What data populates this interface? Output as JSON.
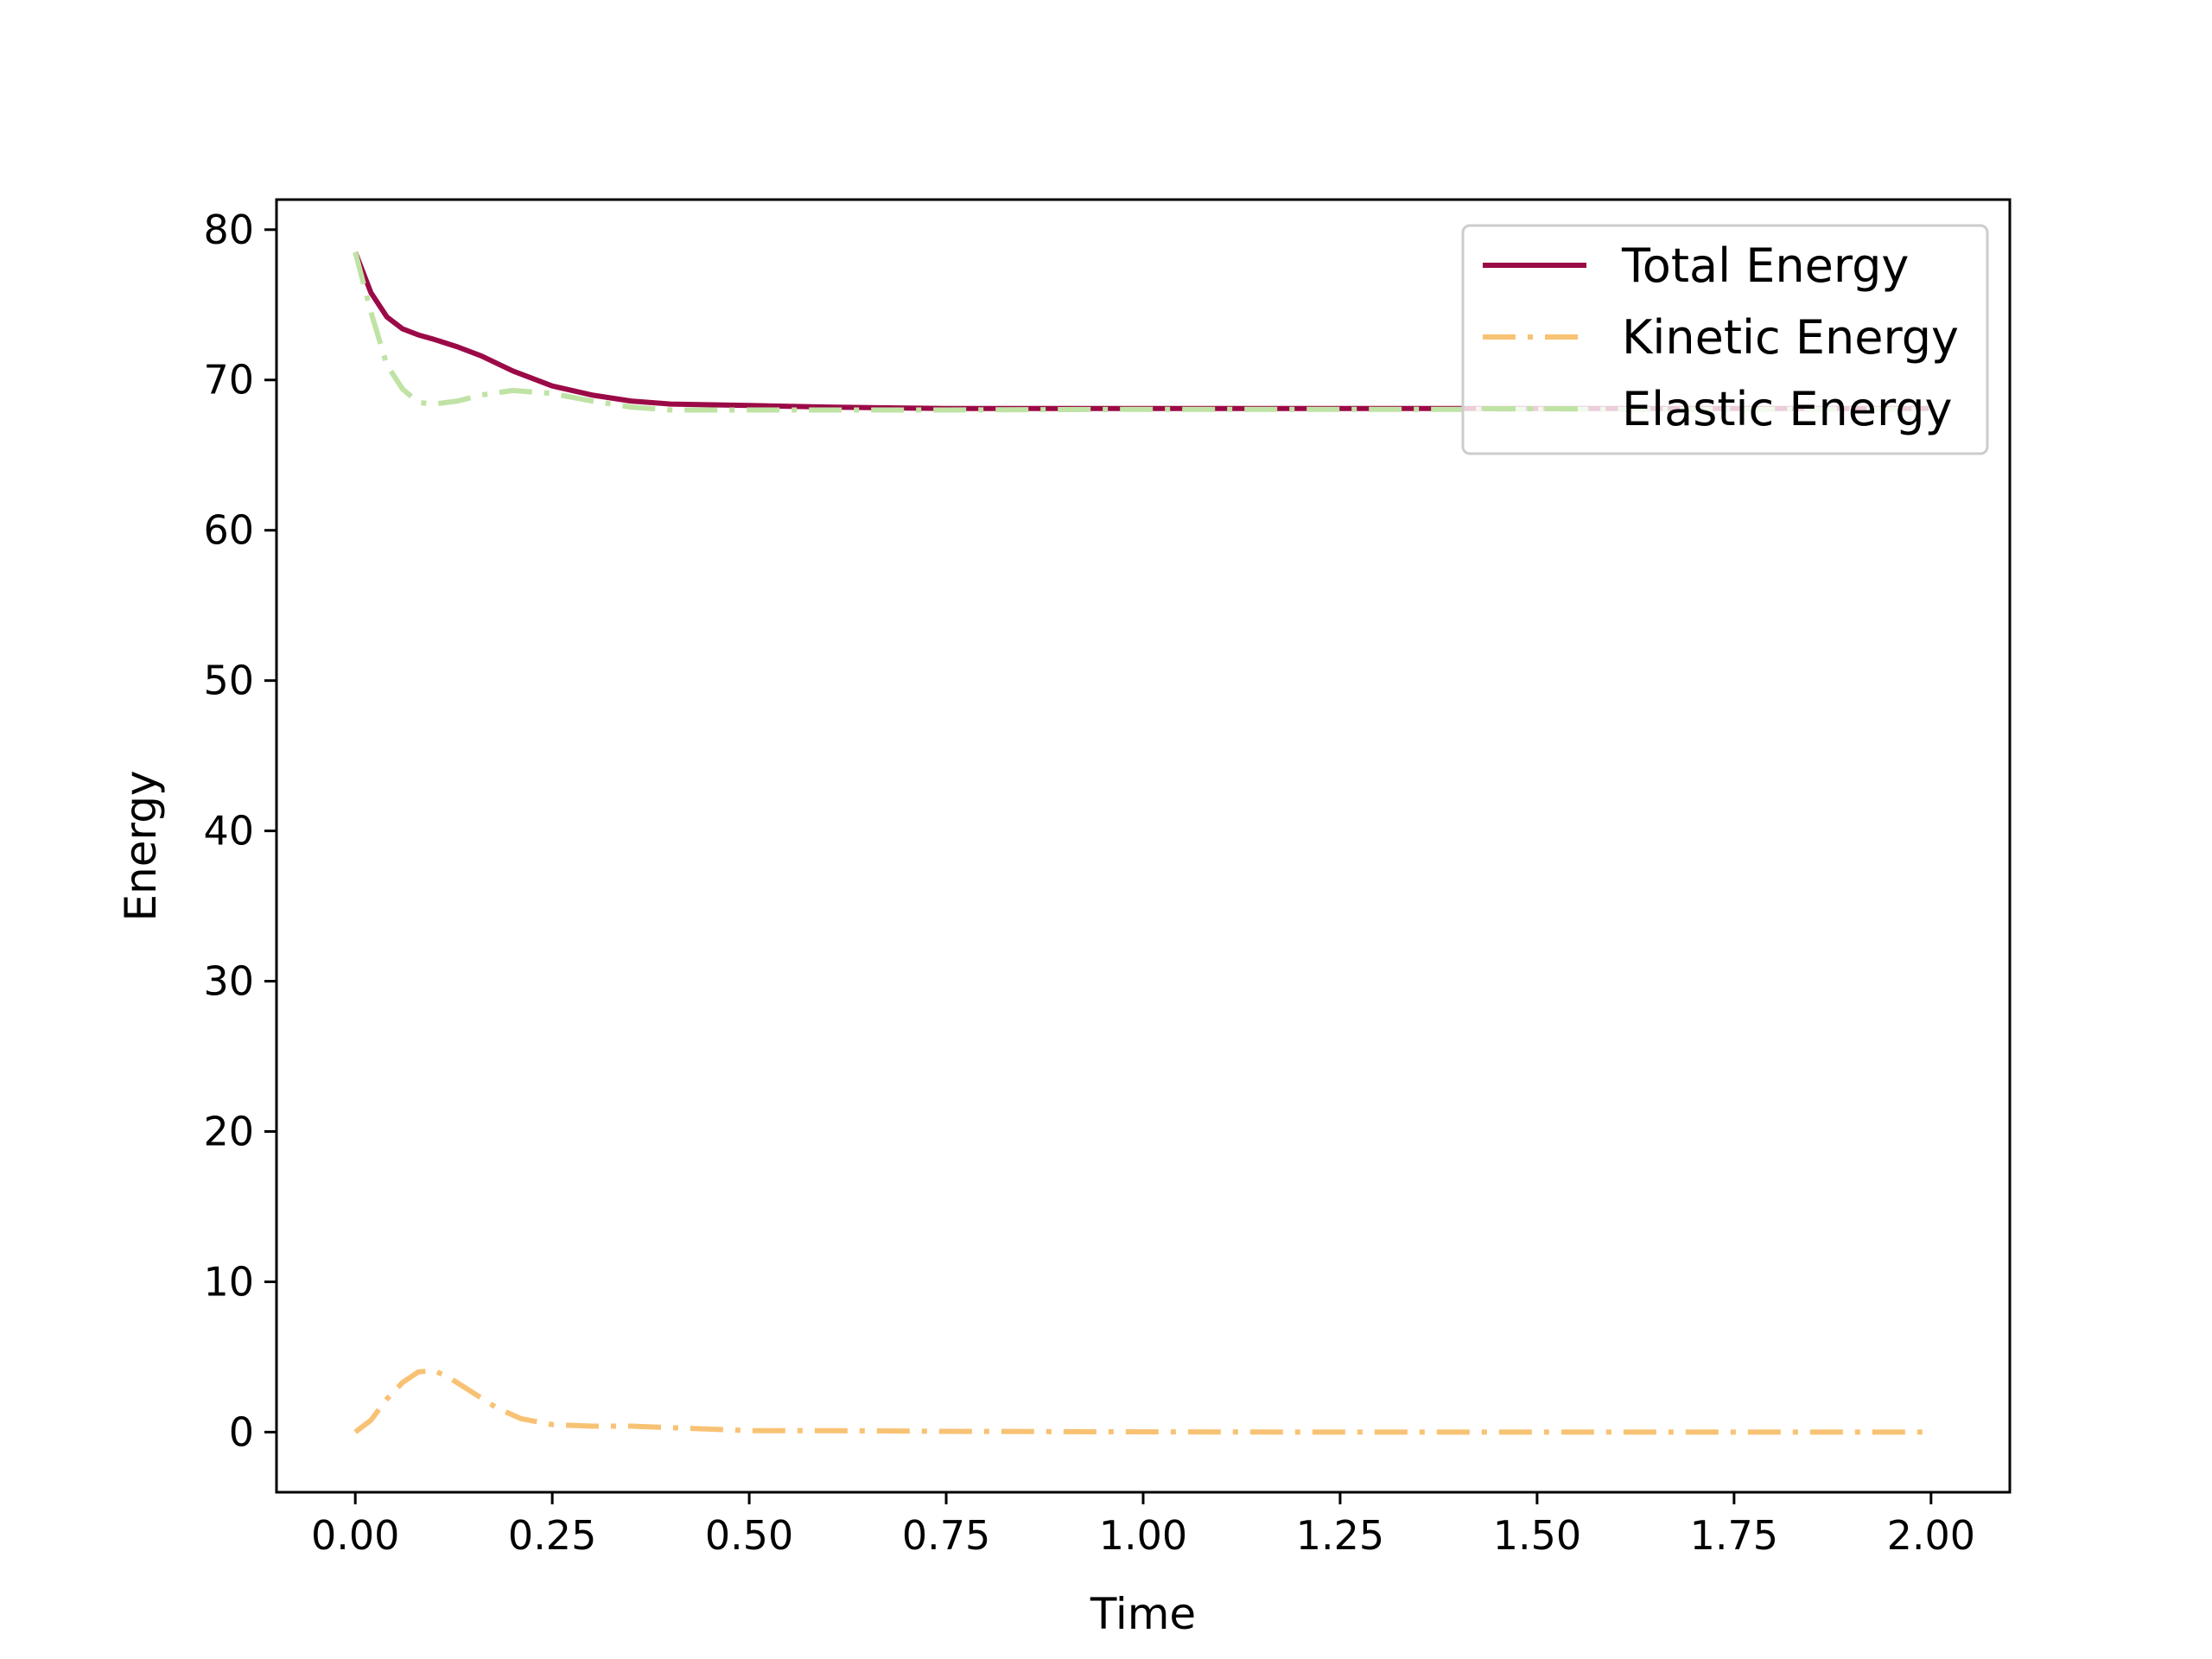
{
  "chart_data": {
    "type": "line",
    "xlabel": "Time",
    "ylabel": "Energy",
    "xlim": [
      -0.1,
      2.1
    ],
    "ylim": [
      -4,
      82
    ],
    "xticks": [
      0.0,
      0.25,
      0.5,
      0.75,
      1.0,
      1.25,
      1.5,
      1.75,
      2.0
    ],
    "xtick_labels": [
      "0.00",
      "0.25",
      "0.50",
      "0.75",
      "1.00",
      "1.25",
      "1.50",
      "1.75",
      "2.00"
    ],
    "yticks": [
      0,
      10,
      20,
      30,
      40,
      50,
      60,
      70,
      80
    ],
    "ytick_labels": [
      "0",
      "10",
      "20",
      "30",
      "40",
      "50",
      "60",
      "70",
      "80"
    ],
    "legend_position": "top-right",
    "series": [
      {
        "name": "Total Energy",
        "color": "#9b0a47",
        "style": "solid",
        "x": [
          0,
          0.02,
          0.04,
          0.06,
          0.08,
          0.1,
          0.13,
          0.16,
          0.2,
          0.25,
          0.3,
          0.35,
          0.4,
          0.5,
          0.6,
          0.75,
          1.0,
          1.25,
          1.5,
          1.75,
          2.0
        ],
        "y": [
          78.5,
          75.8,
          74.2,
          73.4,
          73.0,
          72.7,
          72.2,
          71.6,
          70.6,
          69.6,
          69.0,
          68.6,
          68.4,
          68.3,
          68.2,
          68.1,
          68.1,
          68.1,
          68.1,
          68.1,
          68.1
        ]
      },
      {
        "name": "Kinetic Energy",
        "color": "#f8c274",
        "style": "dashdot",
        "x": [
          0,
          0.02,
          0.04,
          0.06,
          0.08,
          0.1,
          0.12,
          0.15,
          0.18,
          0.21,
          0.25,
          0.3,
          0.35,
          0.4,
          0.5,
          0.6,
          0.75,
          1.0,
          1.25,
          1.5,
          1.75,
          2.0
        ],
        "y": [
          0.0,
          0.8,
          2.2,
          3.3,
          4.0,
          4.1,
          3.6,
          2.6,
          1.6,
          0.9,
          0.5,
          0.4,
          0.4,
          0.3,
          0.1,
          0.1,
          0.05,
          0.02,
          0.0,
          0.0,
          0.0,
          0.0
        ]
      },
      {
        "name": "Elastic Energy",
        "color": "#bfe3a5",
        "style": "dashdot",
        "x": [
          0,
          0.02,
          0.04,
          0.06,
          0.08,
          0.1,
          0.13,
          0.16,
          0.2,
          0.25,
          0.3,
          0.35,
          0.4,
          0.5,
          0.6,
          0.75,
          1.0,
          1.25,
          1.5,
          1.75,
          2.0
        ],
        "y": [
          78.5,
          74.5,
          71.0,
          69.4,
          68.5,
          68.4,
          68.6,
          69.0,
          69.3,
          69.1,
          68.6,
          68.2,
          68.0,
          68.0,
          68.0,
          68.0,
          68.05,
          68.05,
          68.05,
          68.05,
          68.05
        ]
      }
    ]
  }
}
